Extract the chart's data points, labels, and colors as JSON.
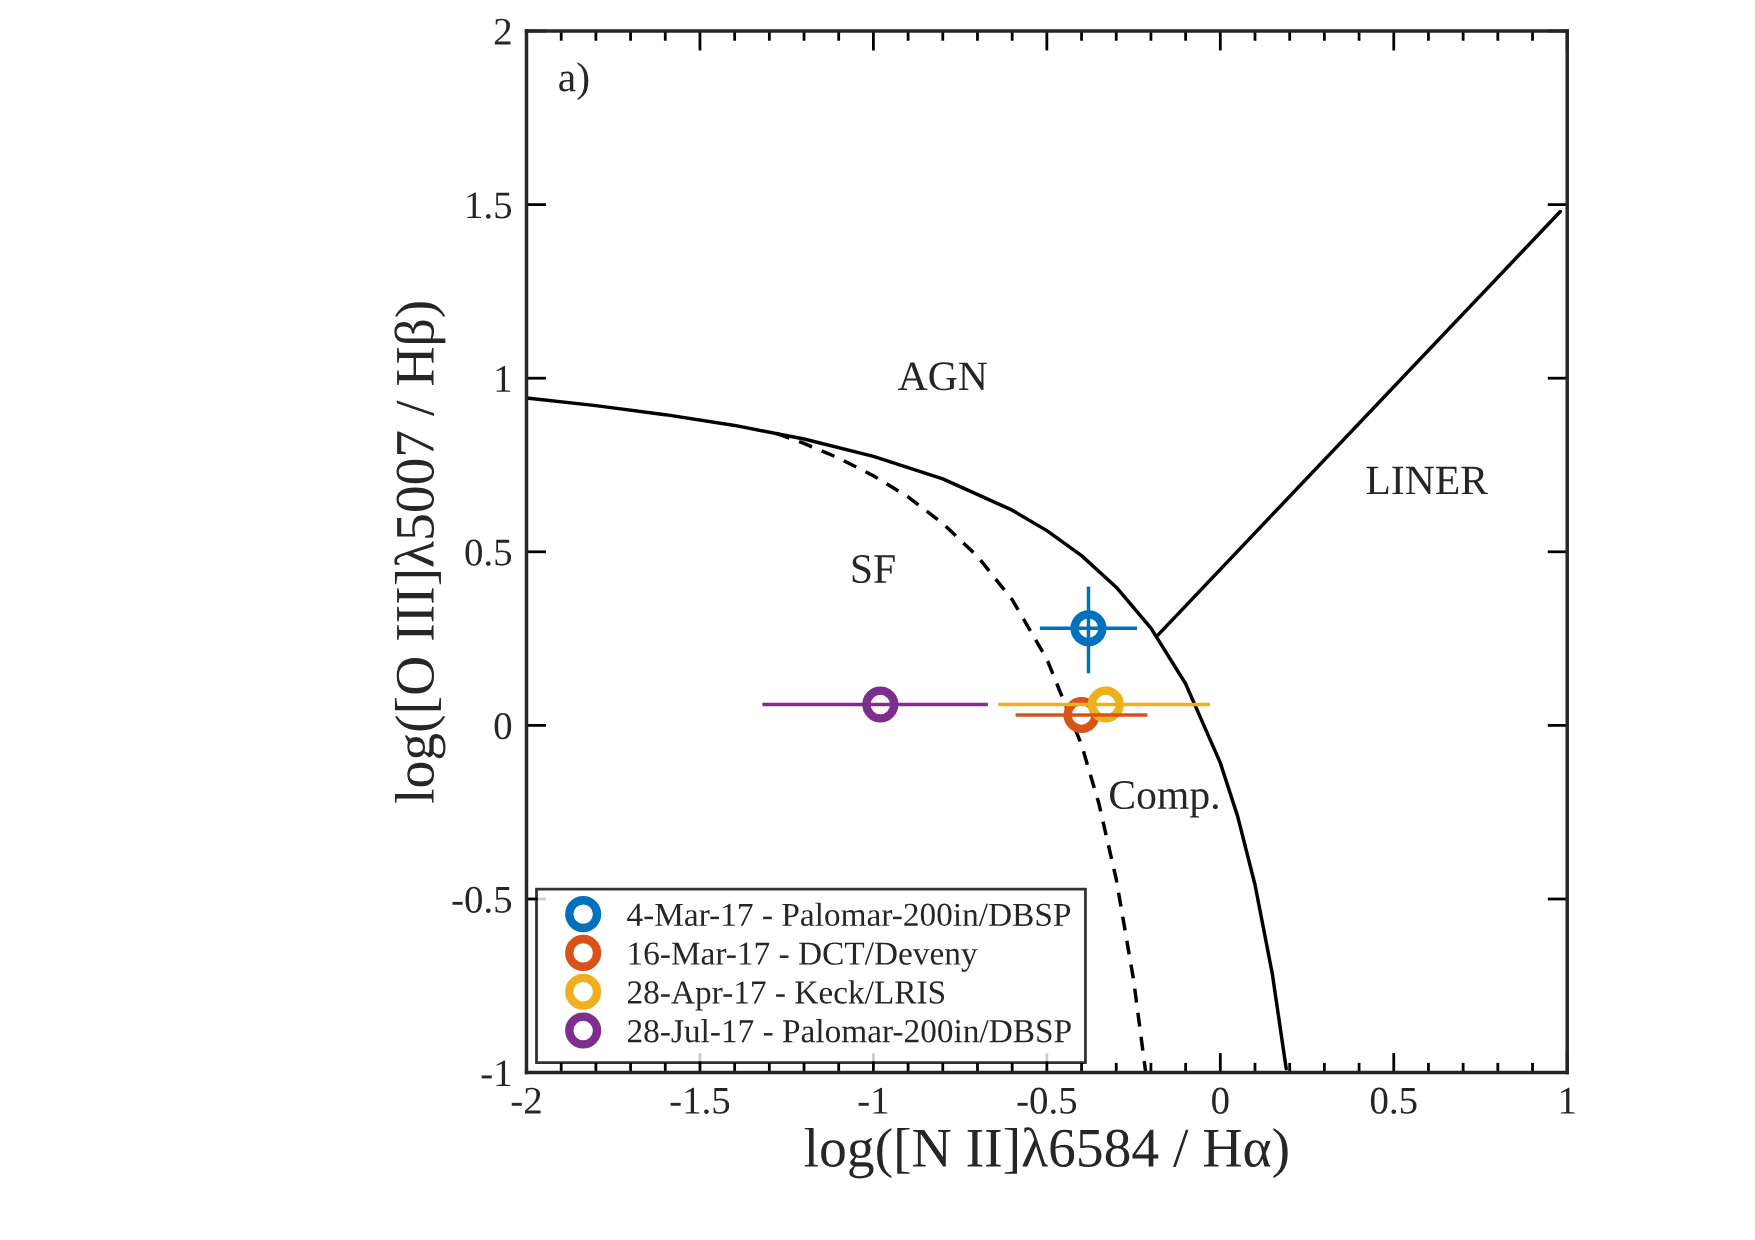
{
  "chart_data": {
    "type": "scatter",
    "xlabel": "log([N II]λ6584 / Hα)",
    "ylabel": "log([O III]λ5007 / Hβ)",
    "xlim": [
      -2,
      1
    ],
    "ylim": [
      -1,
      2
    ],
    "xticks": [
      -2,
      -1.5,
      -1,
      -0.5,
      0,
      0.5,
      1
    ],
    "yticks": [
      -1,
      -0.5,
      0,
      0.5,
      1,
      1.5,
      2
    ],
    "grid": false,
    "legend": "bottom left",
    "marker": "circle",
    "series": [
      {
        "name": "4-Mar-17 - Palomar-200in/DBSP",
        "color": "#0072bd",
        "x": [
          -0.38
        ],
        "values": [
          0.28
        ],
        "xerrors": [
          [
            -0.52,
            -0.24
          ]
        ],
        "errors": [
          [
            0.15,
            0.4
          ]
        ]
      },
      {
        "name": "16-Mar-17 - DCT/Deveny",
        "color": "#d95319",
        "x": [
          -0.4
        ],
        "values": [
          0.03
        ],
        "xerrors": [
          [
            -0.59,
            -0.21
          ]
        ]
      },
      {
        "name": "28-Apr-17 - Keck/LRIS",
        "color": "#edb120",
        "x": [
          -0.33
        ],
        "values": [
          0.06
        ],
        "xerrors": [
          [
            -0.64,
            -0.03
          ]
        ]
      },
      {
        "name": "28-Jul-17 - Palomar-200in/DBSP",
        "color": "#7e2f8e",
        "x": [
          -0.98
        ],
        "values": [
          0.06
        ],
        "xerrors": [
          [
            -1.32,
            -0.67
          ]
        ]
      },
      {
        "type": "line",
        "color": "#000000",
        "line_style": "solid",
        "marker": "none",
        "x": [
          -2,
          -1.8,
          -1.6,
          -1.4,
          -1.2,
          -1.0,
          -0.8,
          -0.6,
          -0.5,
          -0.4,
          -0.3,
          -0.2,
          -0.1,
          0,
          0.05,
          0.1,
          0.15,
          0.19
        ],
        "values": [
          0.943,
          0.921,
          0.895,
          0.864,
          0.825,
          0.775,
          0.71,
          0.62,
          0.561,
          0.489,
          0.398,
          0.28,
          0.12,
          -0.108,
          -0.262,
          -0.459,
          -0.716,
          -0.989
        ]
      },
      {
        "type": "line",
        "color": "#000000",
        "line_style": "dashed",
        "marker": "none",
        "x": [
          -1.28,
          -1.2,
          -1.1,
          -1.0,
          -0.9,
          -0.8,
          -0.7,
          -0.6,
          -0.5,
          -0.4,
          -0.35,
          -0.3,
          -0.25,
          -0.215
        ],
        "values": [
          0.841,
          0.812,
          0.77,
          0.719,
          0.658,
          0.582,
          0.487,
          0.362,
          0.191,
          -0.056,
          -0.225,
          -0.443,
          -0.733,
          -1.0
        ]
      },
      {
        "type": "line",
        "color": "#000000",
        "line_style": "solid",
        "marker": "none",
        "x": [
          -0.18,
          0.98
        ],
        "values": [
          0.26,
          1.48
        ]
      }
    ],
    "annotations": [
      "a)",
      "AGN",
      "SF",
      "LINER",
      "Comp."
    ]
  }
}
